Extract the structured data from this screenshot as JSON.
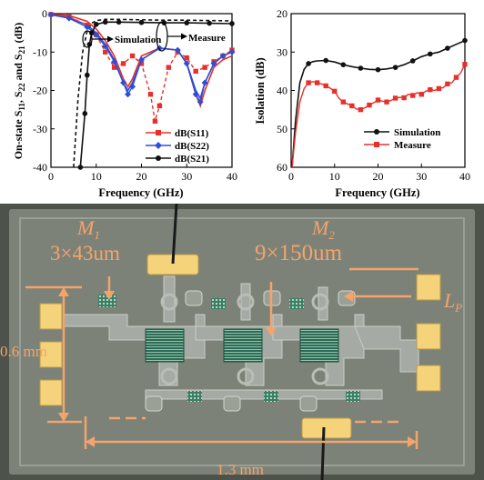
{
  "chart_data": [
    {
      "type": "line",
      "xlabel": "Frequency (GHz)",
      "ylabel": "On-state S11, S22 and S21 (dB)",
      "xlim": [
        0,
        40
      ],
      "ylim": [
        -40,
        0
      ],
      "xticks": [
        0,
        10,
        20,
        30,
        40
      ],
      "yticks": [
        0,
        -10,
        -20,
        -30,
        -40
      ],
      "x_tick_labels": [
        "0",
        "10",
        "20",
        "30",
        "40"
      ],
      "y_tick_labels": [
        "0",
        "-10",
        "-20",
        "-30",
        "-40"
      ],
      "legend_position": "bottom-right",
      "annotations": [
        "Simulation",
        "Measure"
      ],
      "colors": {
        "s11": "#e8302a",
        "s22": "#2d4fd6",
        "s21": "#111111"
      },
      "series": [
        {
          "name": "dB(S11)",
          "simulation": {
            "x": [
              0,
              4,
              8,
              10,
              12,
              14,
              16,
              17,
              18,
              20,
              24,
              28,
              30,
              32,
              33,
              34,
              36,
              38,
              40
            ],
            "y": [
              -0.2,
              -0.5,
              -2,
              -4,
              -7,
              -11,
              -17,
              -19,
              -17,
              -11,
              -9,
              -9.5,
              -13,
              -21,
              -24,
              -20,
              -14,
              -12,
              -11
            ]
          },
          "measure": {
            "x": [
              0,
              4,
              8,
              10,
              12,
              14,
              16,
              18,
              20,
              22,
              23,
              24,
              26,
              28,
              30,
              32,
              34,
              36,
              38,
              40
            ],
            "y": [
              -0.2,
              -0.8,
              -3,
              -5.5,
              -10,
              -14,
              -13,
              -11,
              -13,
              -21,
              -28,
              -24,
              -14,
              -10,
              -11.5,
              -15,
              -14,
              -12.5,
              -11,
              -9.5
            ]
          }
        },
        {
          "name": "dB(S22)",
          "simulation": {
            "x": [
              0,
              4,
              8,
              10,
              12,
              14,
              16,
              17,
              18,
              20,
              24,
              28,
              30,
              32,
              33,
              34,
              36,
              38,
              40
            ],
            "y": [
              -0.3,
              -1,
              -3,
              -5,
              -8,
              -12,
              -18,
              -20,
              -18,
              -12,
              -9,
              -9.5,
              -13,
              -20,
              -22,
              -18,
              -13,
              -11,
              -10
            ]
          },
          "measure": {
            "x": [
              0,
              4,
              8,
              10,
              12,
              14,
              16,
              17,
              18,
              20,
              24,
              28,
              30,
              32,
              33,
              34,
              36,
              38,
              40
            ],
            "y": [
              -0.3,
              -1.2,
              -3.5,
              -5.5,
              -8.5,
              -12.5,
              -18,
              -21,
              -19,
              -12,
              -9,
              -9.5,
              -13,
              -21,
              -23,
              -18,
              -13,
              -11,
              -10
            ]
          }
        },
        {
          "name": "dB(S21)",
          "simulation": {
            "x": [
              5,
              6,
              7,
              8,
              9,
              10,
              12,
              15,
              20,
              25,
              30,
              35,
              40
            ],
            "y": [
              -40,
              -22,
              -10,
              -4.5,
              -2.5,
              -1.8,
              -1.5,
              -1.5,
              -1.6,
              -1.7,
              -1.7,
              -1.8,
              -1.9
            ]
          },
          "measure": {
            "x": [
              6.5,
              7.5,
              8,
              8.5,
              9,
              10,
              12,
              15,
              20,
              25,
              30,
              35,
              40
            ],
            "y": [
              -40,
              -26,
              -16,
              -8,
              -5,
              -2.8,
              -2.2,
              -2.2,
              -2.3,
              -2.4,
              -2.4,
              -2.5,
              -2.6
            ]
          }
        }
      ]
    },
    {
      "type": "line",
      "xlabel": "Frequency (GHz)",
      "ylabel": "Isolation (dB)",
      "xlim": [
        0,
        40
      ],
      "ylim": [
        60,
        20
      ],
      "xticks": [
        0,
        10,
        20,
        30,
        40
      ],
      "yticks": [
        20,
        30,
        40,
        50,
        60
      ],
      "x_tick_labels": [
        "0",
        "10",
        "20",
        "30",
        "40"
      ],
      "y_tick_labels": [
        "20",
        "30",
        "40",
        "50",
        "60"
      ],
      "legend_position": "bottom-right",
      "colors": {
        "simulation": "#111111",
        "measure": "#e8302a"
      },
      "series": [
        {
          "name": "Simulation",
          "x": [
            0.2,
            1,
            2,
            3,
            4,
            5,
            6,
            8,
            10,
            12,
            14,
            16,
            18,
            20,
            22,
            24,
            26,
            28,
            30,
            32,
            34,
            36,
            38,
            40
          ],
          "y": [
            60,
            48,
            38,
            34.5,
            33,
            32.5,
            32.3,
            32.2,
            32.6,
            33.3,
            33.8,
            34.2,
            34.5,
            34.6,
            34.4,
            34,
            33.3,
            32.3,
            31.2,
            30.5,
            30,
            29,
            28,
            27
          ]
        },
        {
          "name": "Measure",
          "x": [
            0.2,
            1,
            2,
            3,
            4,
            5,
            6,
            7,
            8,
            9,
            10,
            11,
            12,
            13,
            14,
            15,
            16,
            17,
            18,
            19,
            20,
            21,
            22,
            23,
            24,
            25,
            26,
            27,
            28,
            29,
            30,
            31,
            32,
            33,
            34,
            35,
            36,
            37,
            38,
            39,
            40
          ],
          "y": [
            60,
            51,
            43,
            39.5,
            38,
            37.7,
            38,
            38.3,
            38.8,
            39.4,
            40.2,
            42,
            43,
            43.5,
            44,
            44.8,
            45,
            44.5,
            43.8,
            43.2,
            42.5,
            42.8,
            43,
            42.6,
            42,
            41.8,
            41.9,
            41,
            41.3,
            40.6,
            41,
            40.2,
            39.8,
            40,
            39.5,
            39.3,
            38.3,
            38,
            36.6,
            35.5,
            33.2
          ]
        }
      ]
    }
  ],
  "chip": {
    "labels": {
      "m1": "M",
      "m1_sub": "1",
      "m2": "M",
      "m2_sub": "2",
      "m1_size": "3×43um",
      "m2_size": "9×150um",
      "lp": "L",
      "lp_sub": "P",
      "height": "0.6 mm",
      "width": "1.3 mm"
    },
    "colors": {
      "die": "#7d8278",
      "pad": "#f5d37a",
      "annotation": "#f4a46a",
      "metal": "#a5aaa4",
      "frame": "#4d524a"
    }
  }
}
